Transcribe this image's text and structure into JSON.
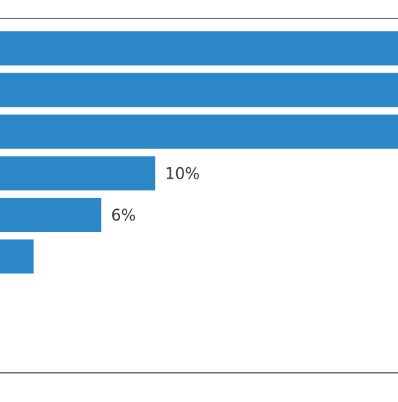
{
  "chart_data": {
    "type": "bar",
    "orientation": "horizontal",
    "categories": [
      "",
      "",
      "",
      "",
      "",
      ""
    ],
    "values": [
      null,
      null,
      null,
      10,
      6,
      1
    ],
    "data_labels": [
      "",
      "",
      "",
      "10%",
      "6%",
      ""
    ],
    "xlim": [
      -1.5,
      28
    ],
    "grid": false,
    "legend": "none",
    "colors": {
      "bar": "#2b87c6",
      "frame": "#222222",
      "label_text": "#333333"
    }
  }
}
